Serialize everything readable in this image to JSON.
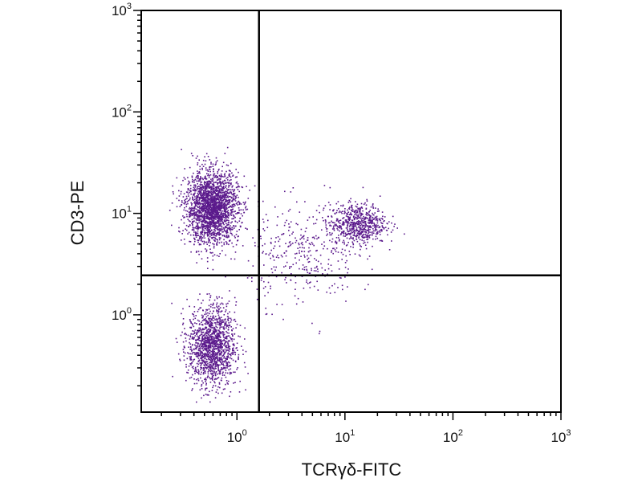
{
  "chart_data": {
    "type": "scatter",
    "title": "",
    "xlabel": "TCRγδ-FITC",
    "ylabel": "CD3-PE",
    "x_scale": "log",
    "y_scale": "log",
    "xlim": [
      0.13,
      1000
    ],
    "ylim": [
      0.11,
      1000
    ],
    "x_ticks": [
      {
        "value": 1,
        "base": "10",
        "exp": "0"
      },
      {
        "value": 10,
        "base": "10",
        "exp": "1"
      },
      {
        "value": 100,
        "base": "10",
        "exp": "2"
      },
      {
        "value": 1000,
        "base": "10",
        "exp": "3"
      }
    ],
    "y_ticks": [
      {
        "value": 1,
        "base": "10",
        "exp": "0"
      },
      {
        "value": 10,
        "base": "10",
        "exp": "1"
      },
      {
        "value": 100,
        "base": "10",
        "exp": "2"
      },
      {
        "value": 1000,
        "base": "10",
        "exp": "3"
      }
    ],
    "gates": {
      "x": 1.6,
      "y": 2.45
    },
    "point_color": "#5b1a8c",
    "grid": false,
    "legend": "none",
    "populations": [
      {
        "name": "",
        "n": 2200,
        "x_center": 0.58,
        "y_center": 11.5,
        "log_sd_x": 0.12,
        "log_sd_y": 0.18
      },
      {
        "name": "",
        "n": 1400,
        "x_center": 0.58,
        "y_center": 0.5,
        "log_sd_x": 0.11,
        "log_sd_y": 0.2
      },
      {
        "name": "",
        "n": 650,
        "x_center": 13,
        "y_center": 8,
        "log_sd_x": 0.13,
        "log_sd_y": 0.1
      },
      {
        "name": "",
        "n": 350,
        "x_center": 4,
        "y_center": 4,
        "log_sd_x": 0.25,
        "log_sd_y": 0.25
      }
    ]
  }
}
